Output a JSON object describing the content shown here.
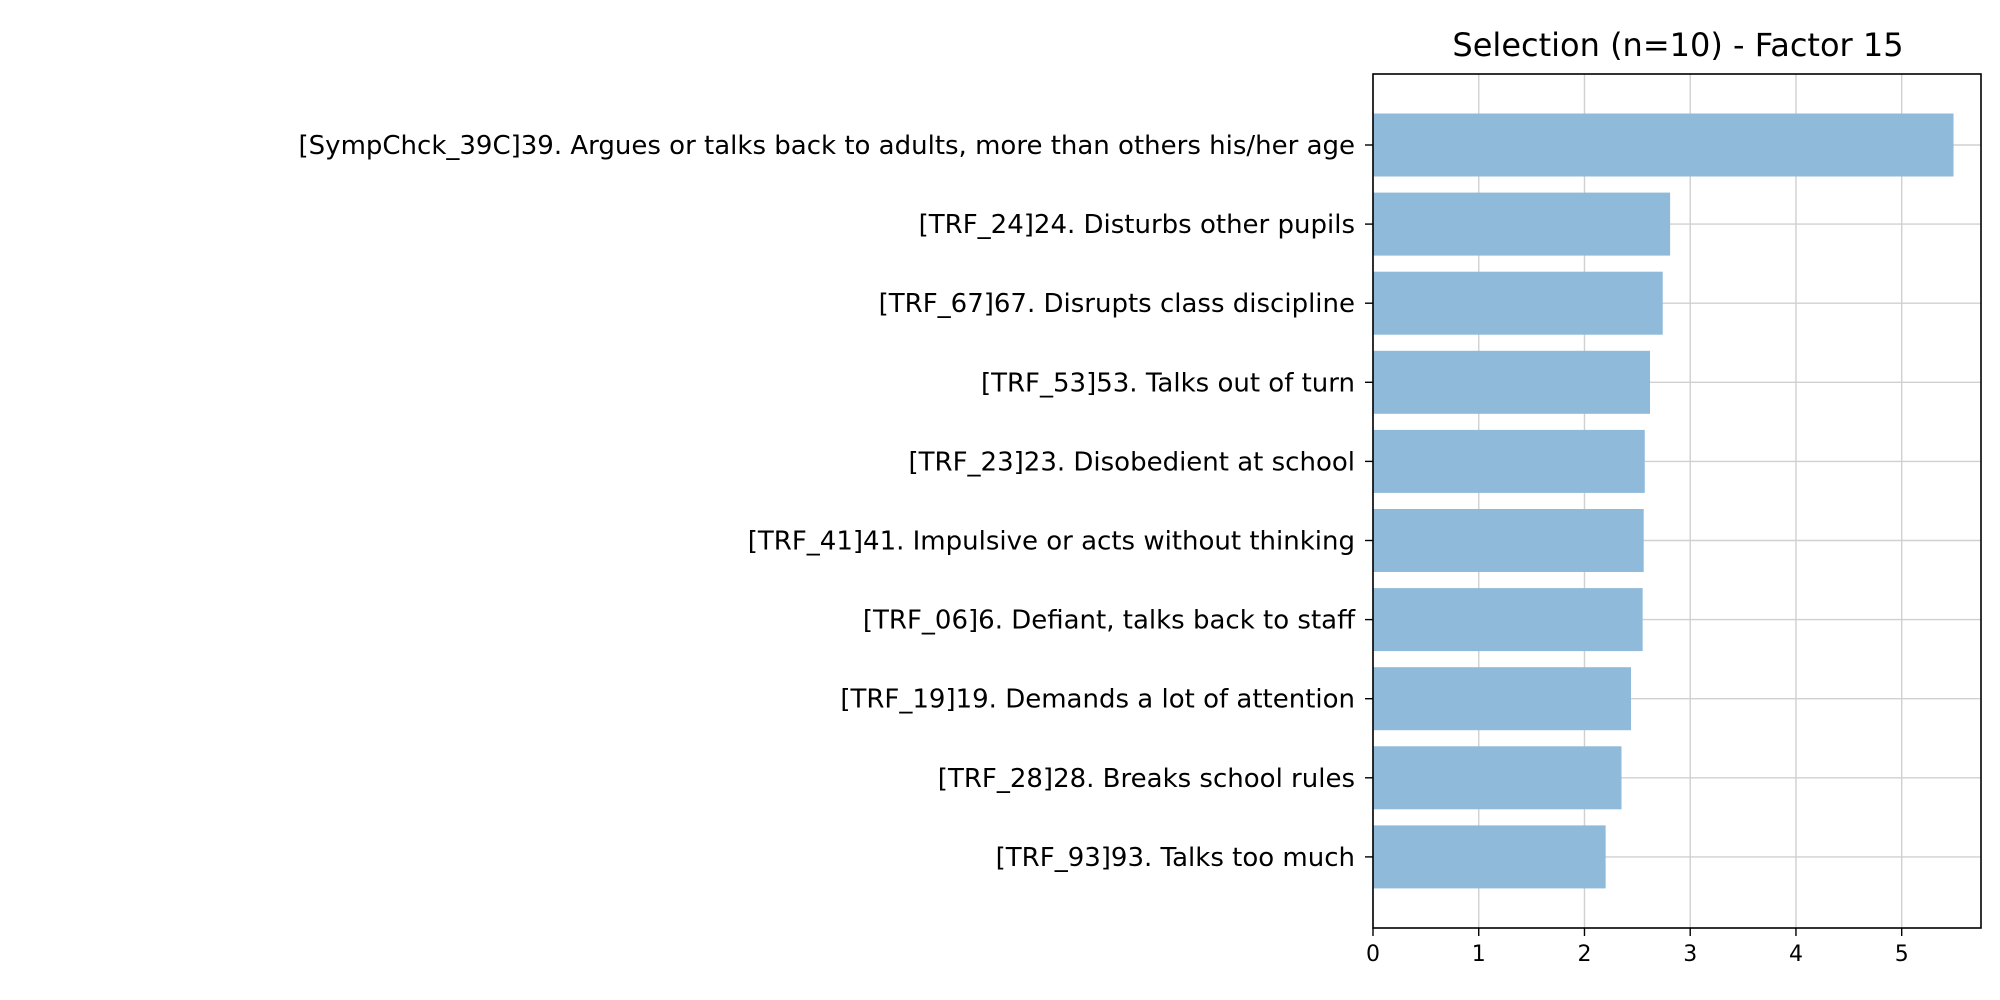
{
  "chart_data": {
    "type": "bar",
    "orientation": "horizontal",
    "title": "Selection (n=10) - Factor 15",
    "xlabel": "",
    "ylabel": "",
    "xlim": [
      0,
      5.75
    ],
    "xticks": [
      0,
      1,
      2,
      3,
      4,
      5
    ],
    "grid": true,
    "bar_color": "#8fbad9",
    "categories": [
      "[SympChck_39C]39. Argues or talks back to adults, more than others his/her age",
      "[TRF_24]24. Disturbs other pupils",
      "[TRF_67]67. Disrupts class discipline",
      "[TRF_53]53. Talks out of turn",
      "[TRF_23]23. Disobedient at school",
      "[TRF_41]41. Impulsive or acts without thinking",
      "[TRF_06]6. Defiant, talks back to staff",
      "[TRF_19]19. Demands a lot of attention",
      "[TRF_28]28. Breaks school rules",
      "[TRF_93]93. Talks too much"
    ],
    "values": [
      5.49,
      2.81,
      2.74,
      2.62,
      2.57,
      2.56,
      2.55,
      2.44,
      2.35,
      2.2
    ]
  }
}
